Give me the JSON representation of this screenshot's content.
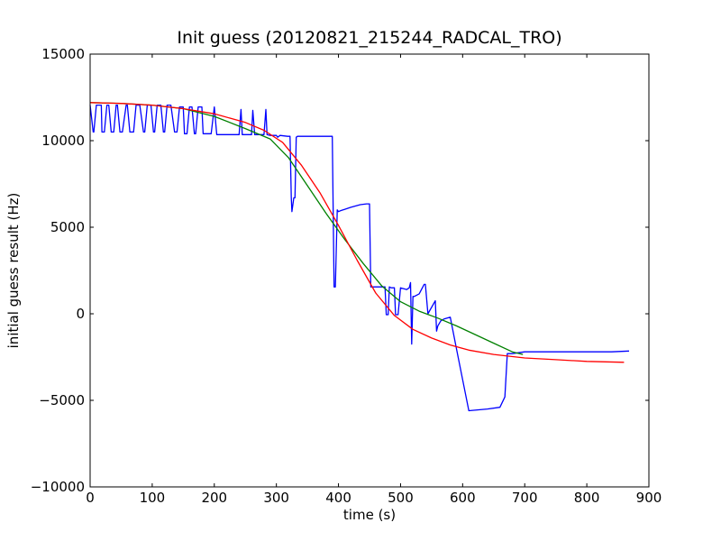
{
  "chart_data": {
    "type": "line",
    "title": "Init guess (20120821_215244_RADCAL_TRO)",
    "xlabel": "time (s)",
    "ylabel": "initial guess result (Hz)",
    "xlim": [
      0,
      900
    ],
    "ylim": [
      -10000,
      15000
    ],
    "xticks": [
      0,
      100,
      200,
      300,
      400,
      500,
      600,
      700,
      800,
      900
    ],
    "yticks": [
      -10000,
      -5000,
      0,
      5000,
      10000,
      15000
    ],
    "xtick_labels": [
      "0",
      "100",
      "200",
      "300",
      "400",
      "500",
      "600",
      "700",
      "800",
      "900"
    ],
    "ytick_labels": [
      "−10000",
      "−5000",
      "0",
      "5000",
      "10000",
      "15000"
    ],
    "grid": false,
    "legend": "none",
    "series": [
      {
        "color": "#0000ff",
        "x": [
          0,
          5,
          6,
          10,
          18,
          19,
          23,
          27,
          30,
          34,
          38,
          42,
          44,
          48,
          52,
          58,
          60,
          64,
          70,
          74,
          80,
          86,
          88,
          92,
          98,
          102,
          104,
          108,
          114,
          118,
          120,
          124,
          130,
          136,
          140,
          144,
          150,
          152,
          156,
          160,
          164,
          168,
          170,
          174,
          180,
          182,
          186,
          195,
          200,
          204,
          215,
          230,
          240,
          243,
          245,
          250,
          260,
          262,
          265,
          270,
          280,
          283,
          285,
          290,
          300,
          302,
          306,
          318,
          322,
          324,
          325,
          328,
          330,
          332,
          334,
          338,
          355,
          375,
          390,
          393,
          395,
          398,
          400,
          403,
          420,
          435,
          445,
          450,
          452,
          455,
          470,
          475,
          477,
          480,
          482,
          485,
          490,
          492,
          496,
          500,
          510,
          514,
          516,
          518,
          520,
          522,
          530,
          538,
          540,
          544,
          556,
          558,
          560,
          565,
          570,
          580,
          590,
          610,
          640,
          660,
          668,
          672,
          676,
          680,
          690,
          700,
          720,
          760,
          800,
          840,
          868
        ],
        "y": [
          12050,
          10500,
          10500,
          12050,
          12050,
          10500,
          10500,
          12050,
          12050,
          10500,
          10500,
          12050,
          12050,
          10500,
          10500,
          12050,
          12050,
          10500,
          10500,
          12050,
          12050,
          10500,
          10500,
          12050,
          12050,
          10500,
          10500,
          12050,
          12050,
          10500,
          10500,
          12050,
          12050,
          10500,
          10500,
          11950,
          11950,
          10400,
          10400,
          11950,
          11950,
          10400,
          10400,
          11950,
          11950,
          10400,
          10400,
          10400,
          11950,
          10350,
          10350,
          10350,
          10350,
          11800,
          10350,
          10350,
          10350,
          11750,
          10350,
          10350,
          10350,
          11800,
          10350,
          10300,
          10300,
          10200,
          10300,
          10250,
          10250,
          6700,
          5900,
          6700,
          6700,
          10200,
          10250,
          10250,
          10250,
          10250,
          10250,
          1550,
          1550,
          6000,
          5900,
          5950,
          6150,
          6300,
          6350,
          6350,
          1550,
          1550,
          1550,
          1550,
          -50,
          -50,
          1550,
          1500,
          1500,
          -50,
          -50,
          1500,
          1400,
          1500,
          1800,
          -1750,
          1000,
          1000,
          1150,
          1700,
          1700,
          0,
          750,
          -1000,
          -700,
          -400,
          -300,
          -200,
          -2000,
          -5600,
          -5500,
          -5400,
          -4800,
          -2300,
          -2300,
          -2300,
          -2250,
          -2200,
          -2200,
          -2200,
          -2200,
          -2200,
          -2150
        ]
      },
      {
        "color": "#008000",
        "x": [
          0,
          50,
          100,
          150,
          200,
          250,
          290,
          320,
          350,
          380,
          410,
          440,
          470,
          500,
          530,
          560,
          590,
          620,
          650,
          680,
          697
        ],
        "y": [
          12200,
          12150,
          12050,
          11850,
          11400,
          10700,
          10100,
          9000,
          7400,
          5800,
          4300,
          2900,
          1600,
          700,
          150,
          -250,
          -700,
          -1200,
          -1700,
          -2200,
          -2350
        ]
      },
      {
        "color": "#ff0000",
        "x": [
          0,
          50,
          100,
          150,
          200,
          250,
          280,
          310,
          340,
          370,
          400,
          430,
          460,
          490,
          520,
          550,
          580,
          610,
          650,
          700,
          750,
          800,
          860
        ],
        "y": [
          12200,
          12150,
          12050,
          11850,
          11550,
          11050,
          10600,
          9900,
          8600,
          7000,
          5100,
          3100,
          1200,
          -100,
          -900,
          -1400,
          -1800,
          -2100,
          -2350,
          -2550,
          -2650,
          -2750,
          -2800
        ]
      }
    ]
  }
}
